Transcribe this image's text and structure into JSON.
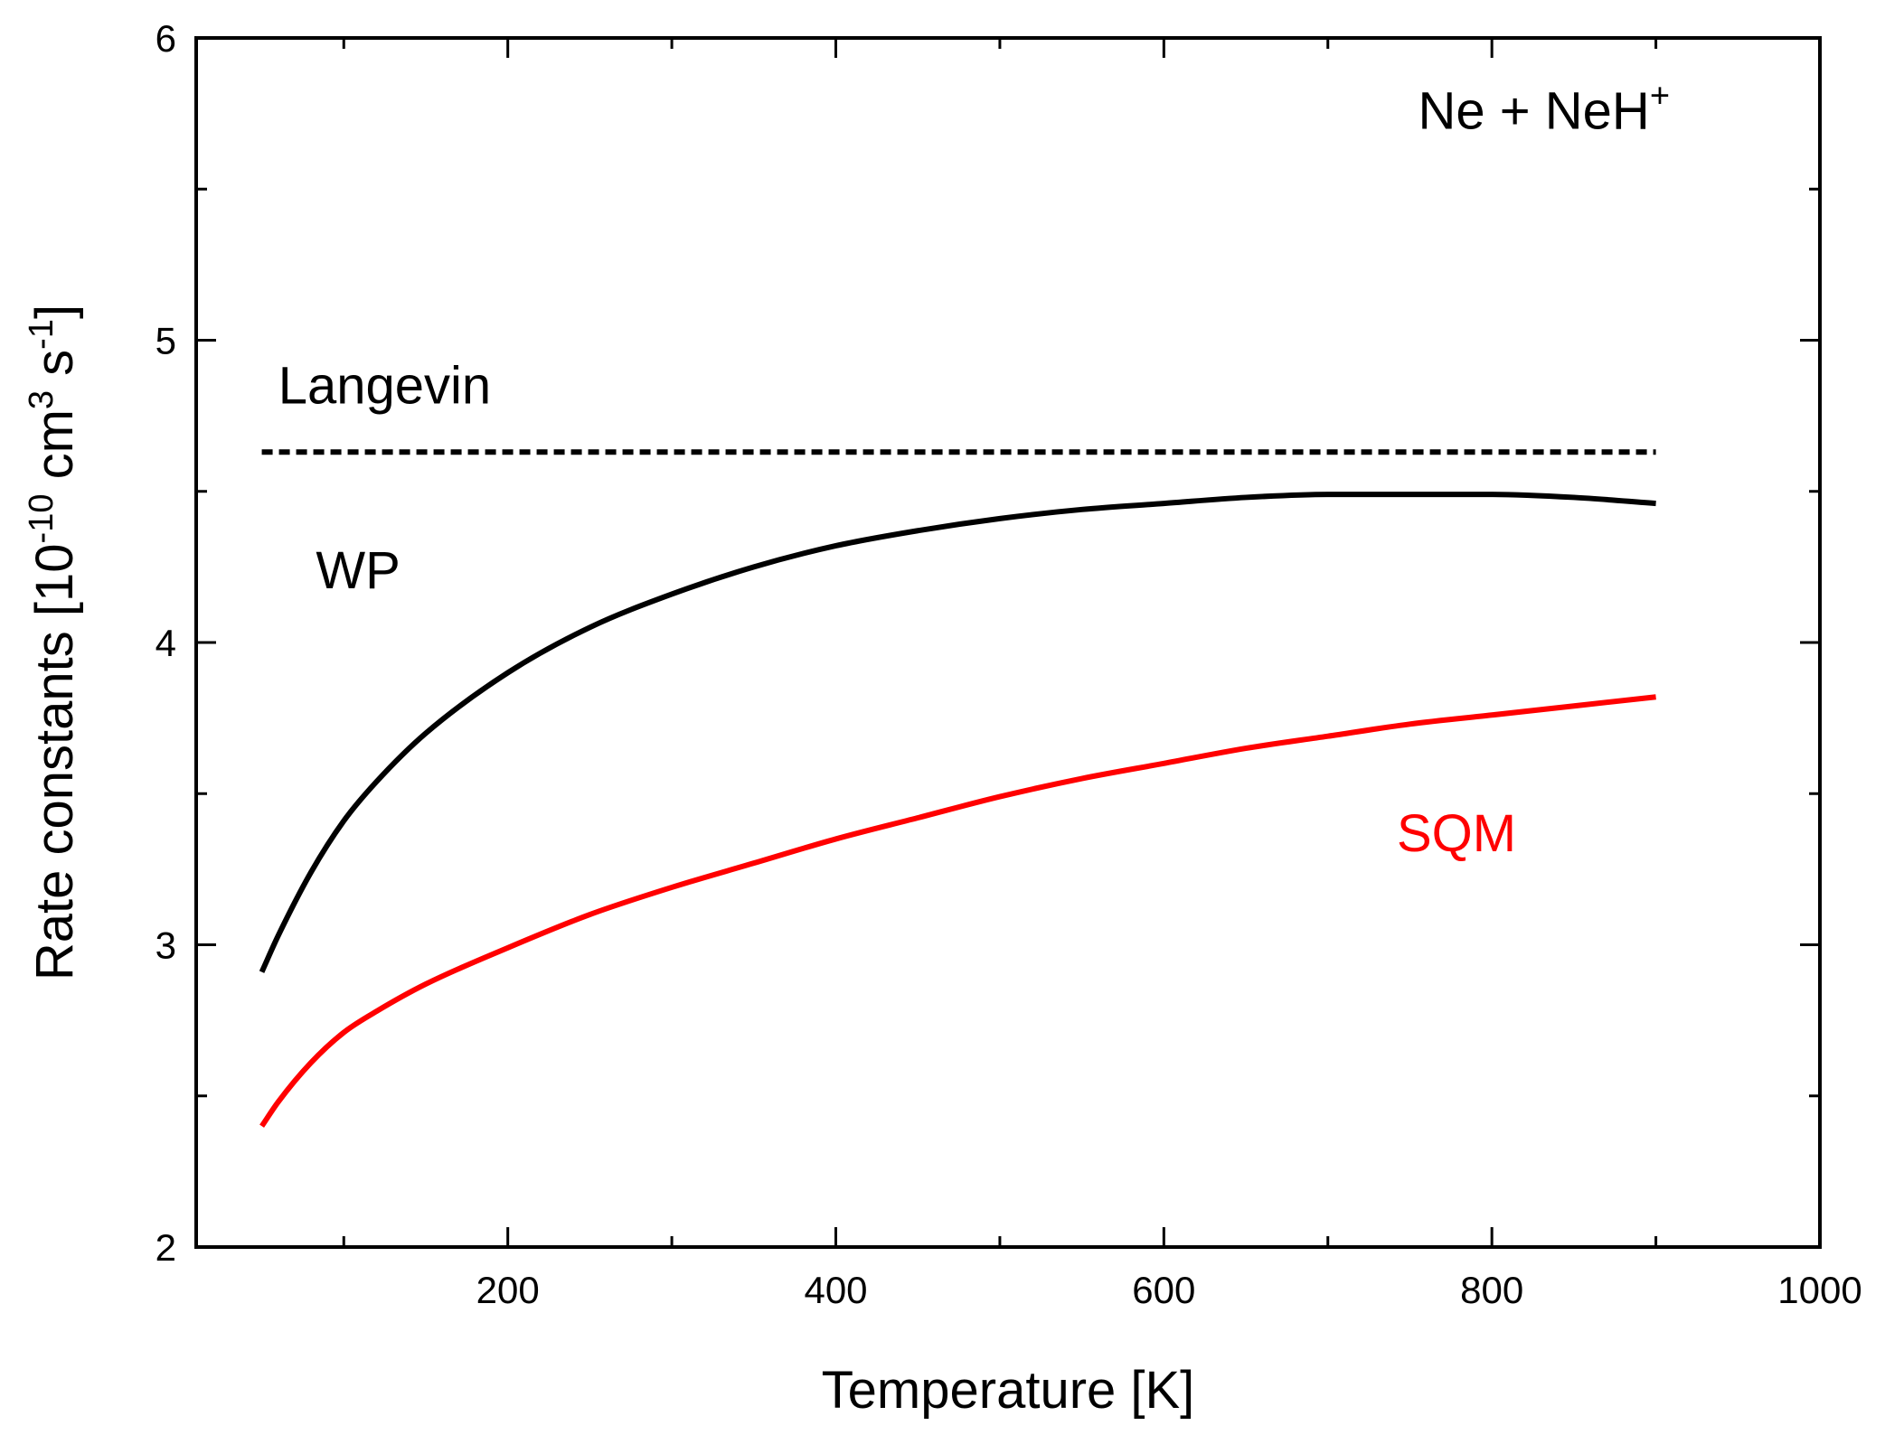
{
  "chart_data": {
    "type": "line",
    "title": "",
    "xlabel": "Temperature [K]",
    "ylabel": {
      "prefix": "Rate constants [10",
      "exp1": "-10",
      "mid1": " cm",
      "exp2": "3",
      "mid2": " s",
      "exp3": "-1",
      "suffix": "]"
    },
    "xlim": [
      10,
      1000
    ],
    "ylim": [
      2,
      6
    ],
    "xticks": [
      200,
      400,
      600,
      800,
      1000
    ],
    "xticks_minor": [
      100,
      300,
      500,
      700,
      900
    ],
    "yticks": [
      2,
      3,
      4,
      5,
      6
    ],
    "yticks_minor": [
      2.5,
      3.5,
      4.5,
      5.5
    ],
    "grid": false,
    "reaction_label": {
      "base": "Ne + NeH",
      "sup": "+"
    },
    "series": [
      {
        "name": "Langevin",
        "color": "#000000",
        "style": "dashed",
        "x": [
          50,
          900
        ],
        "y": [
          4.63,
          4.63
        ]
      },
      {
        "name": "WP",
        "color": "#000000",
        "style": "solid",
        "x": [
          50,
          60,
          80,
          100,
          120,
          150,
          200,
          250,
          300,
          350,
          400,
          450,
          500,
          550,
          600,
          650,
          700,
          750,
          800,
          850,
          900
        ],
        "y": [
          2.91,
          3.03,
          3.24,
          3.41,
          3.54,
          3.7,
          3.9,
          4.05,
          4.16,
          4.25,
          4.32,
          4.37,
          4.41,
          4.44,
          4.46,
          4.48,
          4.49,
          4.49,
          4.49,
          4.48,
          4.46
        ]
      },
      {
        "name": "SQM",
        "color": "#ff0000",
        "style": "solid",
        "x": [
          50,
          60,
          80,
          100,
          120,
          150,
          200,
          250,
          300,
          350,
          400,
          450,
          500,
          550,
          600,
          650,
          700,
          750,
          800,
          850,
          900
        ],
        "y": [
          2.4,
          2.48,
          2.61,
          2.71,
          2.78,
          2.87,
          2.99,
          3.1,
          3.19,
          3.27,
          3.35,
          3.42,
          3.49,
          3.55,
          3.6,
          3.65,
          3.69,
          3.73,
          3.76,
          3.79,
          3.82
        ]
      }
    ],
    "annotations": [
      {
        "text": "Langevin",
        "x": 60,
        "y": 4.79,
        "color": "#000000"
      },
      {
        "text": "WP",
        "x": 83,
        "y": 4.18,
        "color": "#000000"
      },
      {
        "text": "SQM",
        "x": 742,
        "y": 3.31,
        "color": "#ff0000"
      }
    ]
  }
}
